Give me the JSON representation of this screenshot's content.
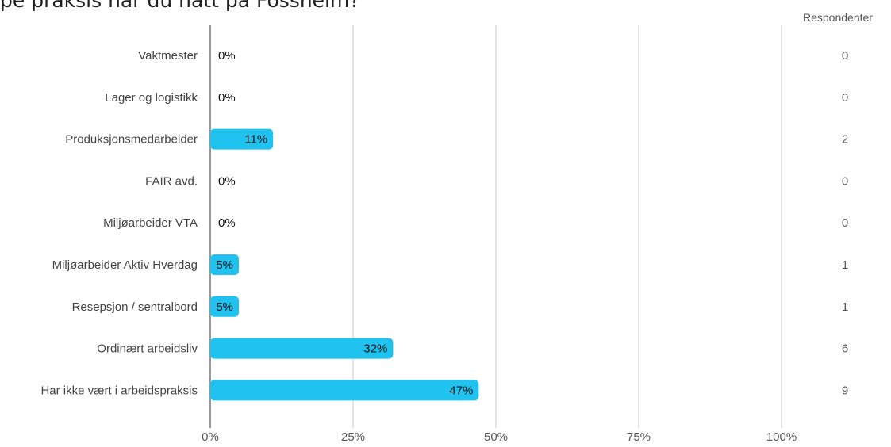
{
  "title": "pe praksis har du hatt på Fossheim?",
  "respondents_header": "Respondenter",
  "colors": {
    "bar": "#20c2f0",
    "grid": "#c8c8c8",
    "axis": "#999999"
  },
  "chart_data": {
    "type": "bar",
    "orientation": "horizontal",
    "title": "pe praksis har du hatt på Fossheim?",
    "categories": [
      "Vaktmester",
      "Lager og logistikk",
      "Produksjonsmedarbeider",
      "FAIR avd.",
      "Miljøarbeider VTA",
      "Miljøarbeider Aktiv Hverdag",
      "Resepsjon / sentralbord",
      "Ordinært arbeidsliv",
      "Har ikke vært i arbeidspraksis"
    ],
    "values": [
      0,
      0,
      11,
      0,
      0,
      5,
      5,
      32,
      47
    ],
    "value_labels": [
      "0%",
      "0%",
      "11%",
      "0%",
      "0%",
      "5%",
      "5%",
      "32%",
      "47%"
    ],
    "respondents": [
      "0",
      "0",
      "2",
      "0",
      "0",
      "1",
      "1",
      "6",
      "9"
    ],
    "xlim": [
      0,
      100
    ],
    "x_ticks": [
      "0%",
      "25%",
      "50%",
      "75%",
      "100%"
    ],
    "grid": true
  }
}
